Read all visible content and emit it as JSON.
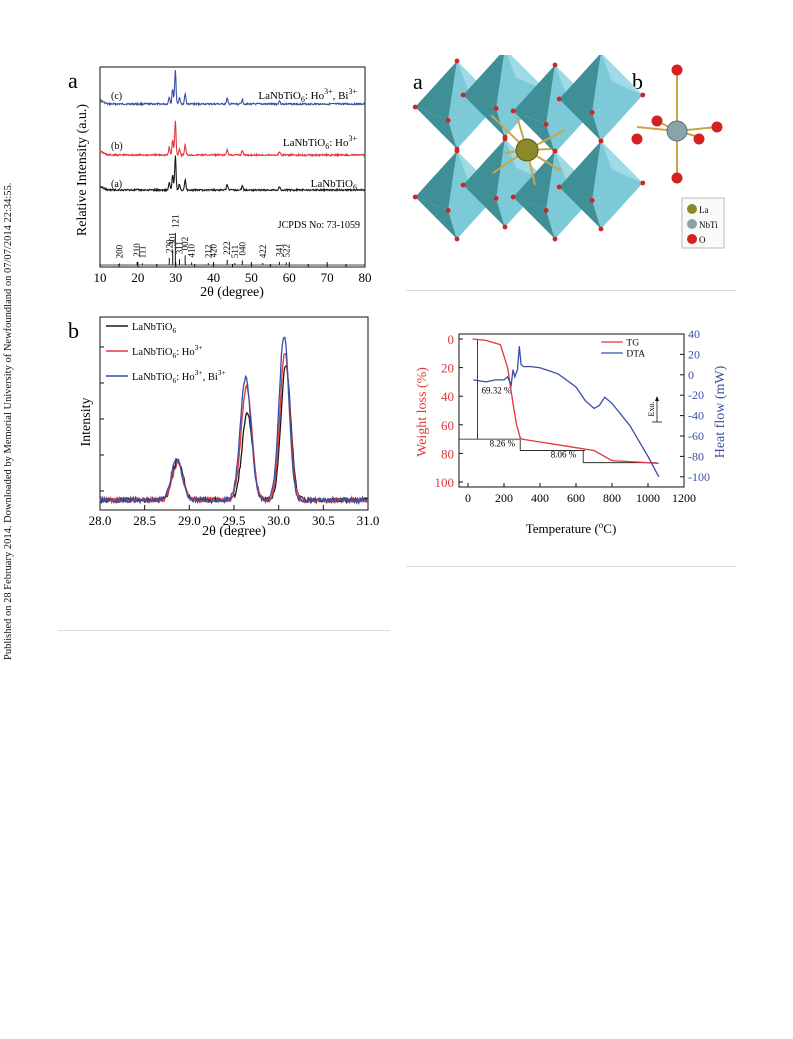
{
  "sidebar_note": "Published on 28 February 2014. Downloaded by Memorial University of Newfoundland on 07/07/2014 22:34:55.",
  "figure1": {
    "panel_a": {
      "label": "a",
      "xlabel": "2θ (degree)",
      "ylabel": "Relative Intensity (a.u.)",
      "xticks": [
        "10",
        "20",
        "30",
        "40",
        "50",
        "60",
        "70",
        "80"
      ],
      "traces": [
        {
          "tag": "(c)",
          "name": "LaNbTiO6: Ho3+, Bi3+",
          "color": "#3a4fa3"
        },
        {
          "tag": "(b)",
          "name": "LaNbTiO6: Ho3+",
          "color": "#e0383c"
        },
        {
          "tag": "(a)",
          "name": "LaNbTiO6",
          "color": "#1a1a1a"
        }
      ],
      "legend_c": {
        "base": "LaNbTiO",
        "sub": "6",
        "mid": ": Ho",
        "sup1": "3+",
        "tail": ", Bi",
        "sup2": "3+"
      },
      "legend_b": {
        "base": "LaNbTiO",
        "sub": "6",
        "mid": ": Ho",
        "sup1": "3+"
      },
      "legend_a": {
        "base": "LaNbTiO",
        "sub": "6"
      },
      "jcpds": "JCPDS No: 73-1059",
      "reflections": [
        {
          "hkl": "200",
          "x": 15.2,
          "h": 0.05
        },
        {
          "hkl": "210",
          "x": 19.8,
          "h": 0.1
        },
        {
          "hkl": "111",
          "x": 21.2,
          "h": 0.05
        },
        {
          "hkl": "220",
          "x": 28.3,
          "h": 0.22
        },
        {
          "hkl": "301",
          "x": 29.2,
          "h": 0.45
        },
        {
          "hkl": "121",
          "x": 29.9,
          "h": 1.0
        },
        {
          "hkl": "311",
          "x": 31.0,
          "h": 0.18
        },
        {
          "hkl": "002",
          "x": 32.5,
          "h": 0.3
        },
        {
          "hkl": "410",
          "x": 34.2,
          "h": 0.08
        },
        {
          "hkl": "212",
          "x": 38.6,
          "h": 0.06
        },
        {
          "hkl": "420",
          "x": 40.0,
          "h": 0.08
        },
        {
          "hkl": "222",
          "x": 43.6,
          "h": 0.16
        },
        {
          "hkl": "511",
          "x": 45.6,
          "h": 0.06
        },
        {
          "hkl": "040",
          "x": 47.6,
          "h": 0.14
        },
        {
          "hkl": "422",
          "x": 53.0,
          "h": 0.06
        },
        {
          "hkl": "341",
          "x": 57.4,
          "h": 0.1
        },
        {
          "hkl": "522",
          "x": 59.2,
          "h": 0.08
        }
      ]
    },
    "panel_b": {
      "label": "b",
      "xlabel": "2θ (degree)",
      "ylabel": "Intensity",
      "xticks": [
        "28.0",
        "28.5",
        "29.0",
        "29.5",
        "30.0",
        "30.5",
        "31.0"
      ],
      "legend": [
        {
          "base": "LaNbTiO",
          "sub": "6",
          "mid": "",
          "sup1": "",
          "tail": "",
          "sup2": "",
          "color": "#1a1a1a"
        },
        {
          "base": "LaNbTiO",
          "sub": "6",
          "mid": ": Ho",
          "sup1": "3+",
          "tail": "",
          "sup2": "",
          "color": "#e0383c"
        },
        {
          "base": "LaNbTiO",
          "sub": "6",
          "mid": ": Ho",
          "sup1": "3+",
          "tail": ", Bi",
          "sup2": "3+",
          "color": "#3a4fa3"
        }
      ]
    }
  },
  "figure2": {
    "label_a": "a",
    "label_b": "b",
    "atom_legend": [
      {
        "name": "La",
        "color": "#8a8a2a"
      },
      {
        "name": "NbTi",
        "color": "#8aa3a8"
      },
      {
        "name": "O",
        "color": "#d42222"
      }
    ],
    "colors": {
      "octahedron_light": "#7cc9d8",
      "octahedron_dark": "#3f8f96",
      "bond": "#c9a64a",
      "oxygen": "#d42222"
    }
  },
  "figure3": {
    "xlabel_base": "Temperature (",
    "xlabel_sup": "o",
    "xlabel_tail": "C)",
    "ylabel_left": "Weight loss (%)",
    "ylabel_right": "Heat flow (mW)",
    "xticks": [
      "0",
      "200",
      "400",
      "600",
      "800",
      "1000",
      "1200"
    ],
    "yticks_left": [
      "0",
      "20",
      "40",
      "60",
      "80",
      "100"
    ],
    "yticks_right": [
      "40",
      "20",
      "0",
      "-20",
      "-40",
      "-60",
      "-80",
      "-100"
    ],
    "legend": [
      {
        "name": "TG",
        "color": "#e0383c"
      },
      {
        "name": "DTA",
        "color": "#3a4fa3"
      }
    ],
    "annotations": [
      "69.32 %",
      "8.26 %",
      "8.06 %"
    ],
    "exo": "Exo."
  },
  "chart_data": [
    {
      "type": "line",
      "title": "",
      "xlabel": "2θ (degree)",
      "ylabel": "Relative Intensity (a.u.)",
      "xlim": [
        10,
        80
      ],
      "series": [
        {
          "name": "LaNbTiO6: Ho3+, Bi3+",
          "peaks": [
            [
              29.9,
              1.0
            ],
            [
              29.2,
              0.45
            ],
            [
              32.5,
              0.3
            ],
            [
              28.3,
              0.22
            ],
            [
              31.0,
              0.18
            ],
            [
              43.6,
              0.16
            ],
            [
              47.6,
              0.14
            ],
            [
              57.4,
              0.1
            ]
          ]
        },
        {
          "name": "LaNbTiO6: Ho3+",
          "peaks": [
            [
              29.9,
              1.0
            ],
            [
              29.2,
              0.45
            ],
            [
              32.5,
              0.3
            ],
            [
              28.3,
              0.22
            ],
            [
              31.0,
              0.18
            ],
            [
              43.6,
              0.16
            ],
            [
              47.6,
              0.14
            ],
            [
              57.4,
              0.1
            ]
          ]
        },
        {
          "name": "LaNbTiO6",
          "peaks": [
            [
              29.9,
              1.0
            ],
            [
              29.2,
              0.45
            ],
            [
              32.5,
              0.3
            ],
            [
              28.3,
              0.22
            ],
            [
              31.0,
              0.18
            ],
            [
              43.6,
              0.16
            ],
            [
              47.6,
              0.14
            ],
            [
              57.4,
              0.1
            ]
          ]
        }
      ]
    },
    {
      "type": "line",
      "title": "",
      "xlabel": "2θ (degree)",
      "ylabel": "Intensity",
      "xlim": [
        28.0,
        31.0
      ],
      "series": [
        {
          "name": "LaNbTiO6",
          "peaks": [
            [
              28.87,
              0.24
            ],
            [
              29.65,
              0.52
            ],
            [
              30.08,
              0.82
            ]
          ]
        },
        {
          "name": "LaNbTiO6: Ho3+",
          "peaks": [
            [
              28.87,
              0.22
            ],
            [
              29.64,
              0.68
            ],
            [
              30.07,
              0.9
            ]
          ]
        },
        {
          "name": "LaNbTiO6: Ho3+, Bi3+",
          "peaks": [
            [
              28.86,
              0.25
            ],
            [
              29.63,
              0.74
            ],
            [
              30.06,
              1.0
            ]
          ]
        }
      ]
    },
    {
      "type": "line",
      "title": "",
      "xlabel": "Temperature (oC)",
      "ylabel": "Weight loss (%)",
      "y2label": "Heat flow (mW)",
      "xlim": [
        -50,
        1200
      ],
      "ylim": [
        100,
        0
      ],
      "y2lim": [
        -110,
        40
      ],
      "series": [
        {
          "name": "TG",
          "axis": "left",
          "x": [
            25,
            100,
            180,
            220,
            250,
            270,
            290,
            300,
            400,
            500,
            600,
            700,
            800,
            1000,
            1060
          ],
          "y": [
            0,
            1,
            4,
            20,
            45,
            60,
            69,
            70,
            72,
            74,
            76,
            78,
            85,
            86.5,
            87
          ]
        },
        {
          "name": "DTA",
          "axis": "right",
          "x": [
            30,
            100,
            150,
            200,
            220,
            240,
            250,
            260,
            275,
            285,
            295,
            310,
            350,
            400,
            500,
            600,
            650,
            700,
            730,
            760,
            800,
            900,
            1000,
            1060
          ],
          "y": [
            -5,
            -7,
            -5,
            -5,
            -2,
            -10,
            5,
            -2,
            5,
            28,
            10,
            8,
            8,
            7,
            1,
            -12,
            -25,
            -33,
            -30,
            -22,
            -28,
            -50,
            -80,
            -100
          ]
        }
      ]
    }
  ]
}
